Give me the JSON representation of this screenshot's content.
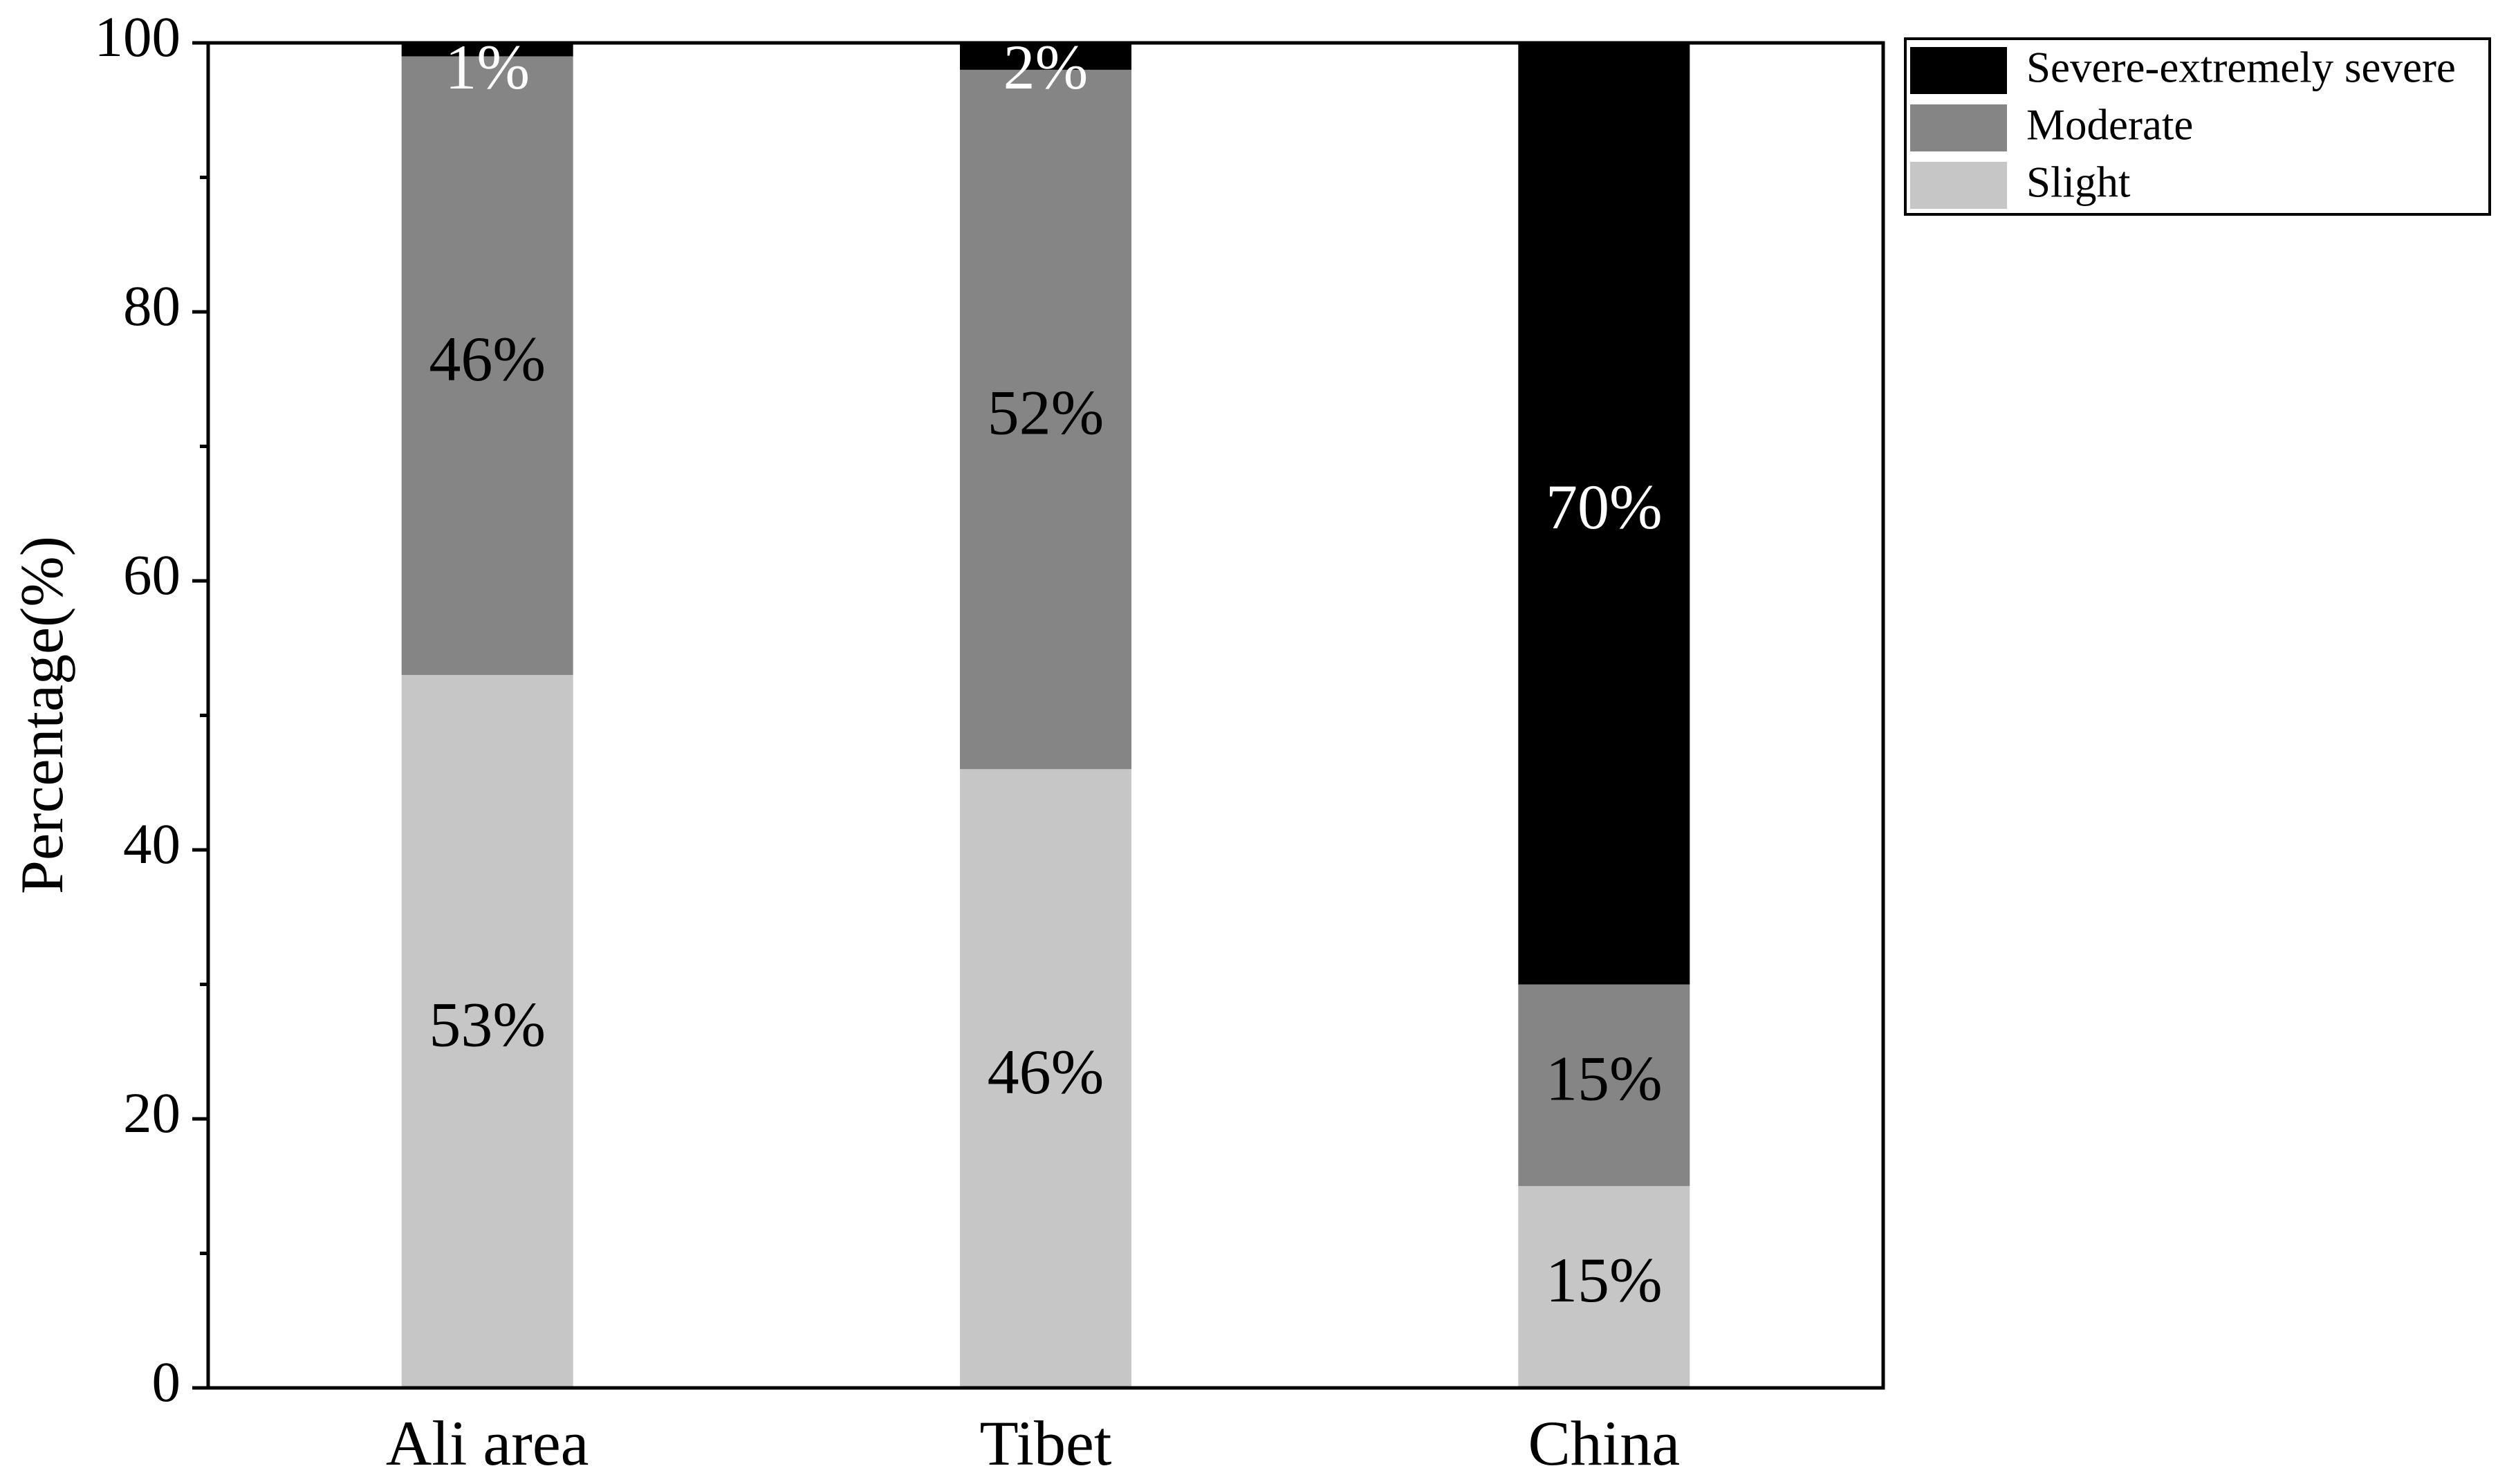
{
  "chart_data": {
    "type": "stacked_bar",
    "y_label": "Percentage(%)",
    "categories": [
      "Ali area",
      "Tibet",
      "China"
    ],
    "series": [
      {
        "name": "Slight",
        "color": "#c6c6c6",
        "values": [
          53,
          46,
          15
        ],
        "value_labels": [
          "53%",
          "46%",
          "15%"
        ]
      },
      {
        "name": "Moderate",
        "color": "#858585",
        "values": [
          46,
          52,
          15
        ],
        "value_labels": [
          "46%",
          "52%",
          "15%"
        ]
      },
      {
        "name": "Severe-extremely severe",
        "color": "#000000",
        "values": [
          1,
          2,
          70
        ],
        "value_labels": [
          "1%",
          "2%",
          "70%"
        ]
      }
    ],
    "ylim": [
      0,
      100
    ],
    "yticks": [
      0,
      20,
      40,
      60,
      80,
      100
    ],
    "legend": "outside-top-right",
    "grid": false
  }
}
